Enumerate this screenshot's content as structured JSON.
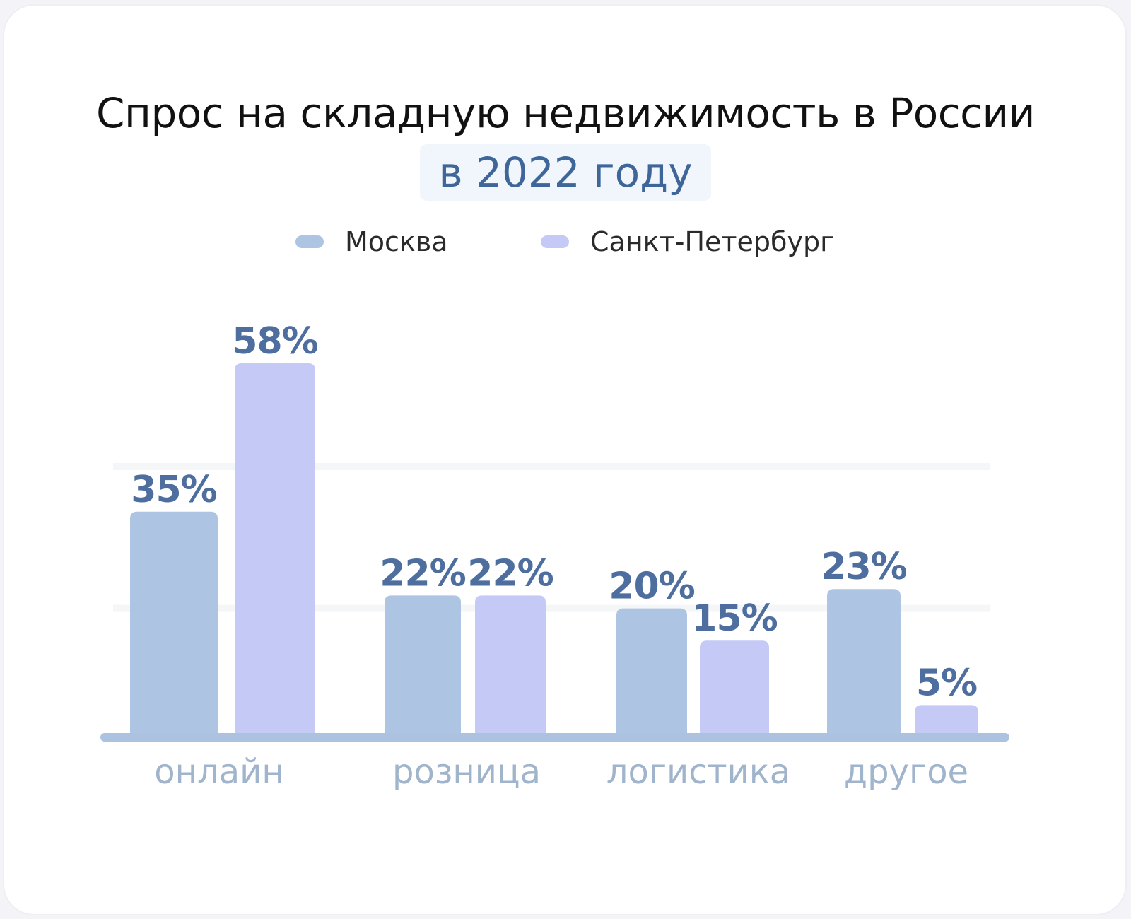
{
  "title": "Спрос на складную недвижимость в России",
  "subtitle": "в 2022 году",
  "colors": {
    "moscow": "#adc4e2",
    "spb": "#c4c9f5",
    "value_label": "#4d6e9e",
    "category_label": "#a0b4cc",
    "baseline": "#abc3e1",
    "grid": "#f5f6f8"
  },
  "legend": [
    {
      "label": "Москва",
      "color": "#adc4e2"
    },
    {
      "label": "Санкт-Петербург",
      "color": "#c4c9f5"
    }
  ],
  "chart_data": {
    "type": "bar",
    "categories": [
      "онлайн",
      "розница",
      "логистика",
      "другое"
    ],
    "series": [
      {
        "name": "Москва",
        "values": [
          35,
          22,
          20,
          23
        ],
        "labels": [
          "35%",
          "22%",
          "20%",
          "23%"
        ]
      },
      {
        "name": "Санкт-Петербург",
        "values": [
          58,
          22,
          15,
          5
        ],
        "labels": [
          "58%",
          "22%",
          "15%",
          "5%"
        ]
      }
    ],
    "ylim": [
      0,
      60
    ],
    "grid": true,
    "legend_position": "top-center"
  }
}
